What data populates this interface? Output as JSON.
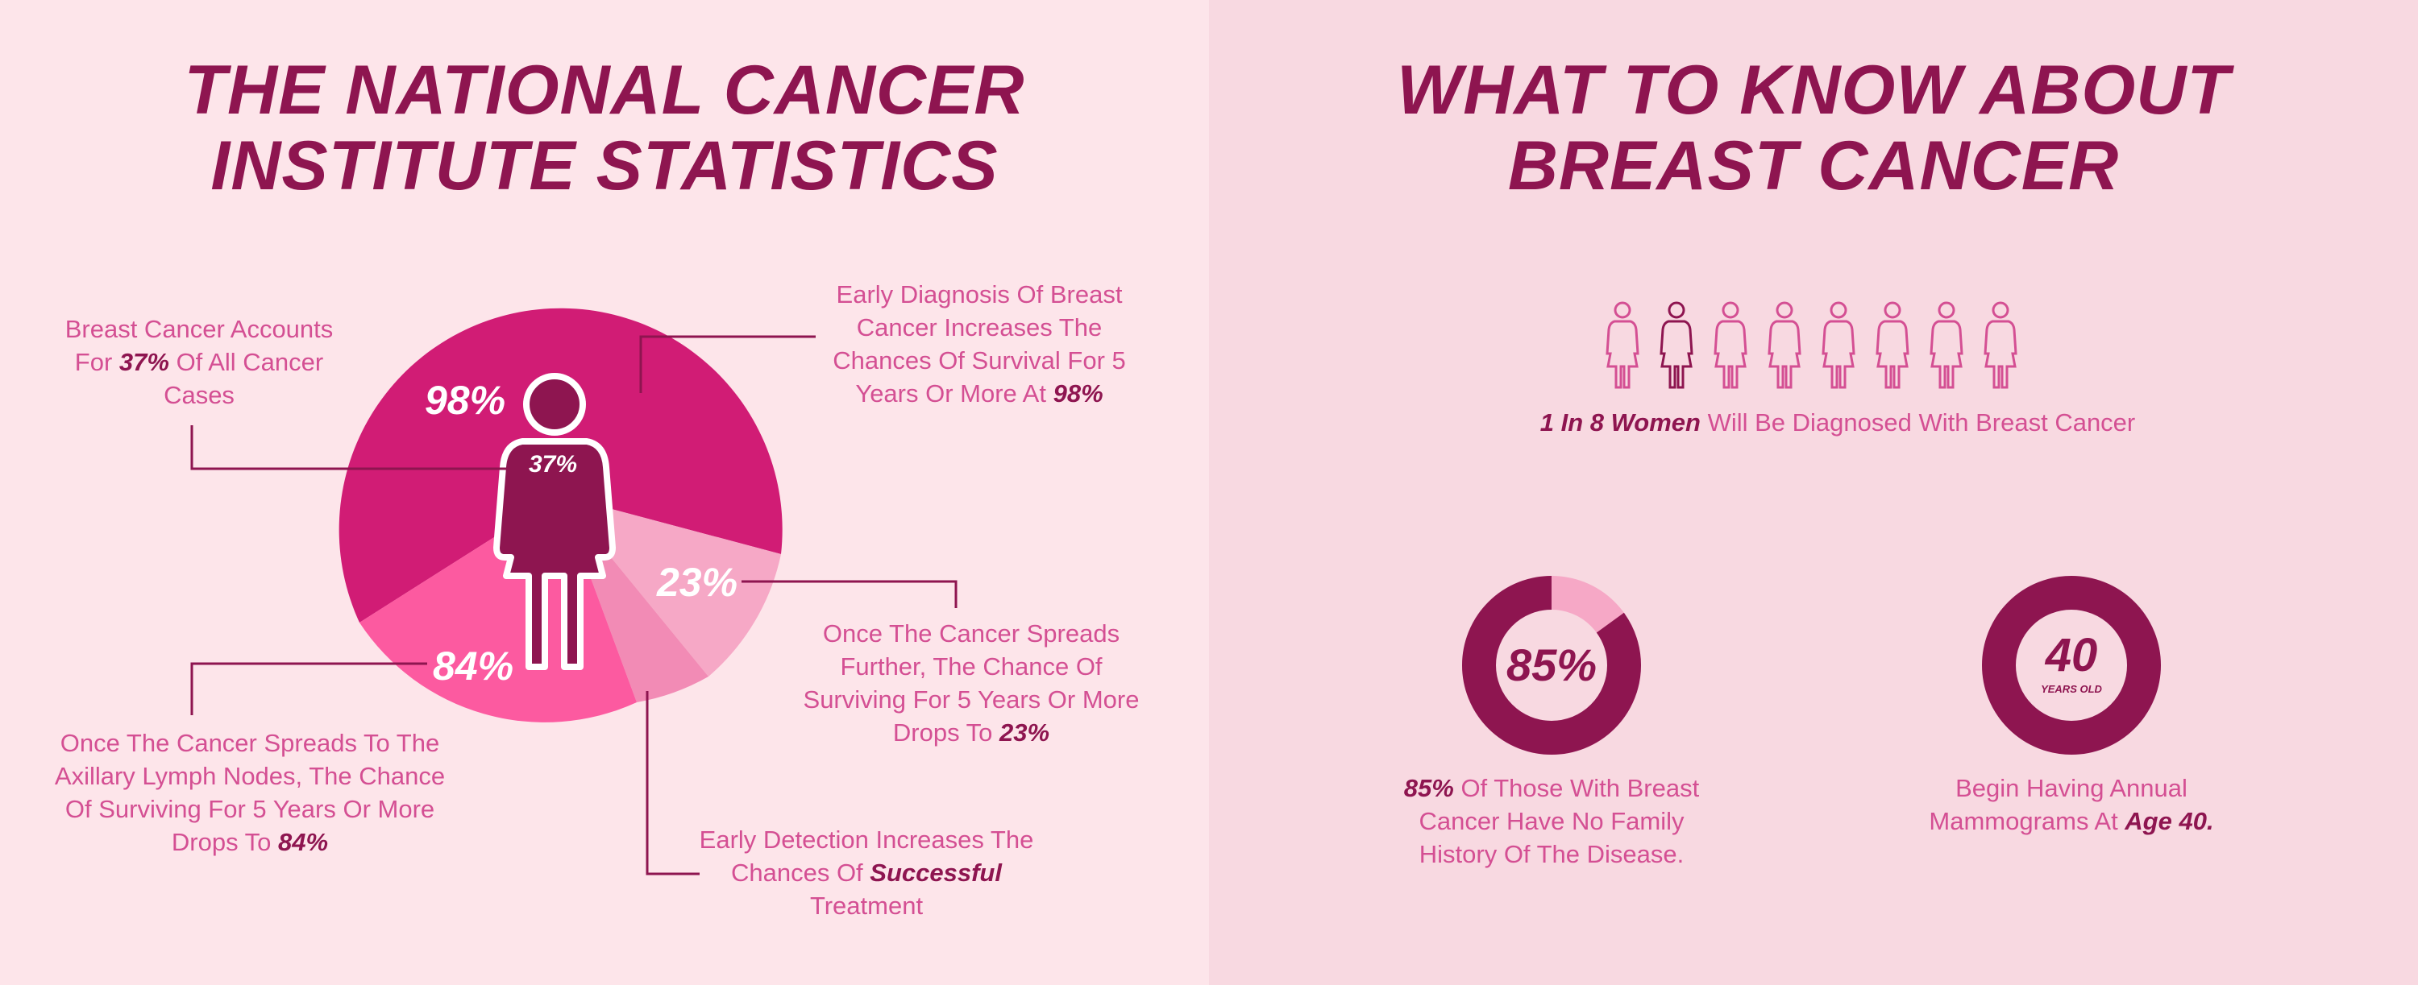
{
  "left": {
    "title_line1": "THE NATIONAL CANCER",
    "title_line2": "INSTITUTE STATISTICS",
    "pie_labels": {
      "p98": "98%",
      "p37": "37%",
      "p23": "23%",
      "p84": "84%"
    },
    "callouts": {
      "accounts": {
        "pre": "Breast Cancer Accounts For ",
        "bold": "37%",
        "post": " Of All Cancer Cases"
      },
      "early_diagnosis": {
        "pre": "Early Diagnosis Of Breast Cancer Increases The Chances Of Survival For 5 Years Or More At ",
        "bold": "98%",
        "post": ""
      },
      "spreads_further": {
        "pre": "Once The Cancer Spreads Further, The Chance Of Surviving For 5 Years Or More Drops To ",
        "bold": "23%",
        "post": ""
      },
      "lymph": {
        "pre": "Once The Cancer Spreads To The Axillary Lymph Nodes, The Chance Of Surviving For 5 Years Or More Drops To ",
        "bold": "84%",
        "post": ""
      },
      "detection": {
        "pre": "Early Detection Increases The Chances Of ",
        "bold": "Successful",
        "post": " Treatment"
      }
    }
  },
  "right": {
    "title_line1": "WHAT TO KNOW ABOUT",
    "title_line2": "BREAST CANCER",
    "women": {
      "bold": "1 In 8 Women",
      "rest": " Will Be Diagnosed With Breast Cancer",
      "total": 8,
      "highlighted": 1
    },
    "ring85": {
      "value": "85%",
      "fraction": 0.85,
      "bold": "85%",
      "rest": " Of Those With Breast Cancer Have No Family History Of The Disease."
    },
    "ring40": {
      "value": "40",
      "sub": "YEARS OLD",
      "pre": "Begin Having Annual Mammograms At ",
      "bold": "Age 40."
    }
  },
  "colors": {
    "dark": "#8e1550",
    "magenta": "#d11c75",
    "pink": "#fc5aa0",
    "mid_pink": "#f28bb5",
    "light_pink": "#f6a8c6",
    "label": "#d44f93"
  }
}
